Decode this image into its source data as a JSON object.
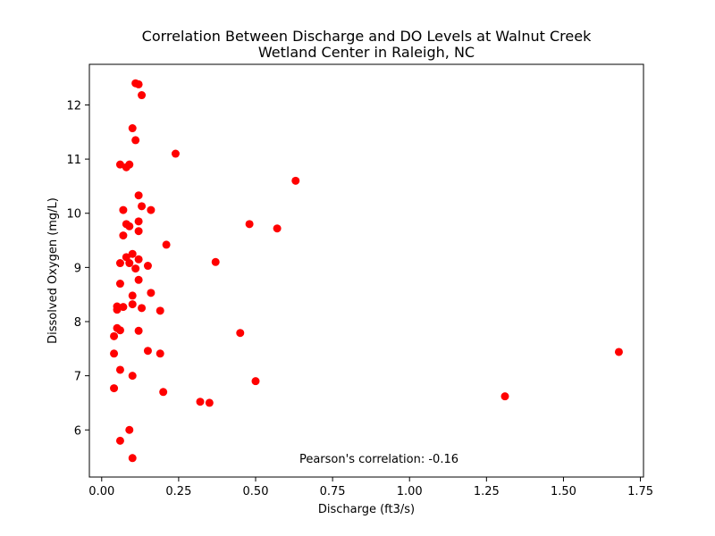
{
  "chart_data": {
    "type": "scatter",
    "title": [
      "Correlation Between Discharge and DO Levels at Walnut Creek",
      "Wetland Center in Raleigh, NC"
    ],
    "xlabel": "Discharge (ft3/s)",
    "ylabel": "Dissolved Oxygen (mg/L)",
    "xlim": [
      -0.04,
      1.76
    ],
    "ylim": [
      5.13,
      12.75
    ],
    "xticks": [
      0.0,
      0.25,
      0.5,
      0.75,
      1.0,
      1.25,
      1.5,
      1.75
    ],
    "xtick_labels": [
      "0.00",
      "0.25",
      "0.50",
      "0.75",
      "1.00",
      "1.25",
      "1.50",
      "1.75"
    ],
    "yticks": [
      6,
      7,
      8,
      9,
      10,
      11,
      12
    ],
    "ytick_labels": [
      "6",
      "7",
      "8",
      "9",
      "10",
      "11",
      "12"
    ],
    "grid": false,
    "marker_color": "#ff0000",
    "annotation": "Pearson's correlation: -0.16",
    "points": [
      {
        "x": 0.11,
        "y": 12.4
      },
      {
        "x": 0.12,
        "y": 12.38
      },
      {
        "x": 0.13,
        "y": 12.18
      },
      {
        "x": 0.1,
        "y": 11.57
      },
      {
        "x": 0.11,
        "y": 11.35
      },
      {
        "x": 0.24,
        "y": 11.1
      },
      {
        "x": 0.06,
        "y": 10.9
      },
      {
        "x": 0.09,
        "y": 10.9
      },
      {
        "x": 0.08,
        "y": 10.85
      },
      {
        "x": 0.63,
        "y": 10.6
      },
      {
        "x": 0.12,
        "y": 10.33
      },
      {
        "x": 0.13,
        "y": 10.13
      },
      {
        "x": 0.07,
        "y": 10.06
      },
      {
        "x": 0.16,
        "y": 10.06
      },
      {
        "x": 0.12,
        "y": 9.85
      },
      {
        "x": 0.08,
        "y": 9.8
      },
      {
        "x": 0.48,
        "y": 9.8
      },
      {
        "x": 0.09,
        "y": 9.76
      },
      {
        "x": 0.57,
        "y": 9.72
      },
      {
        "x": 0.12,
        "y": 9.67
      },
      {
        "x": 0.07,
        "y": 9.59
      },
      {
        "x": 0.21,
        "y": 9.42
      },
      {
        "x": 0.1,
        "y": 9.25
      },
      {
        "x": 0.08,
        "y": 9.19
      },
      {
        "x": 0.12,
        "y": 9.15
      },
      {
        "x": 0.06,
        "y": 9.08
      },
      {
        "x": 0.09,
        "y": 9.08
      },
      {
        "x": 0.37,
        "y": 9.1
      },
      {
        "x": 0.15,
        "y": 9.03
      },
      {
        "x": 0.11,
        "y": 8.98
      },
      {
        "x": 0.12,
        "y": 8.77
      },
      {
        "x": 0.06,
        "y": 8.7
      },
      {
        "x": 0.16,
        "y": 8.53
      },
      {
        "x": 0.1,
        "y": 8.48
      },
      {
        "x": 0.1,
        "y": 8.32
      },
      {
        "x": 0.05,
        "y": 8.28
      },
      {
        "x": 0.07,
        "y": 8.27
      },
      {
        "x": 0.05,
        "y": 8.22
      },
      {
        "x": 0.13,
        "y": 8.25
      },
      {
        "x": 0.19,
        "y": 8.2
      },
      {
        "x": 0.05,
        "y": 7.88
      },
      {
        "x": 0.06,
        "y": 7.84
      },
      {
        "x": 0.12,
        "y": 7.83
      },
      {
        "x": 0.04,
        "y": 7.73
      },
      {
        "x": 0.45,
        "y": 7.79
      },
      {
        "x": 0.15,
        "y": 7.46
      },
      {
        "x": 0.04,
        "y": 7.41
      },
      {
        "x": 0.19,
        "y": 7.41
      },
      {
        "x": 1.68,
        "y": 7.44
      },
      {
        "x": 0.06,
        "y": 7.11
      },
      {
        "x": 0.1,
        "y": 7.0
      },
      {
        "x": 0.5,
        "y": 6.9
      },
      {
        "x": 0.04,
        "y": 6.77
      },
      {
        "x": 0.2,
        "y": 6.7
      },
      {
        "x": 1.31,
        "y": 6.62
      },
      {
        "x": 0.32,
        "y": 6.52
      },
      {
        "x": 0.35,
        "y": 6.5
      },
      {
        "x": 0.09,
        "y": 6.0
      },
      {
        "x": 0.06,
        "y": 5.8
      },
      {
        "x": 0.1,
        "y": 5.48
      }
    ]
  }
}
